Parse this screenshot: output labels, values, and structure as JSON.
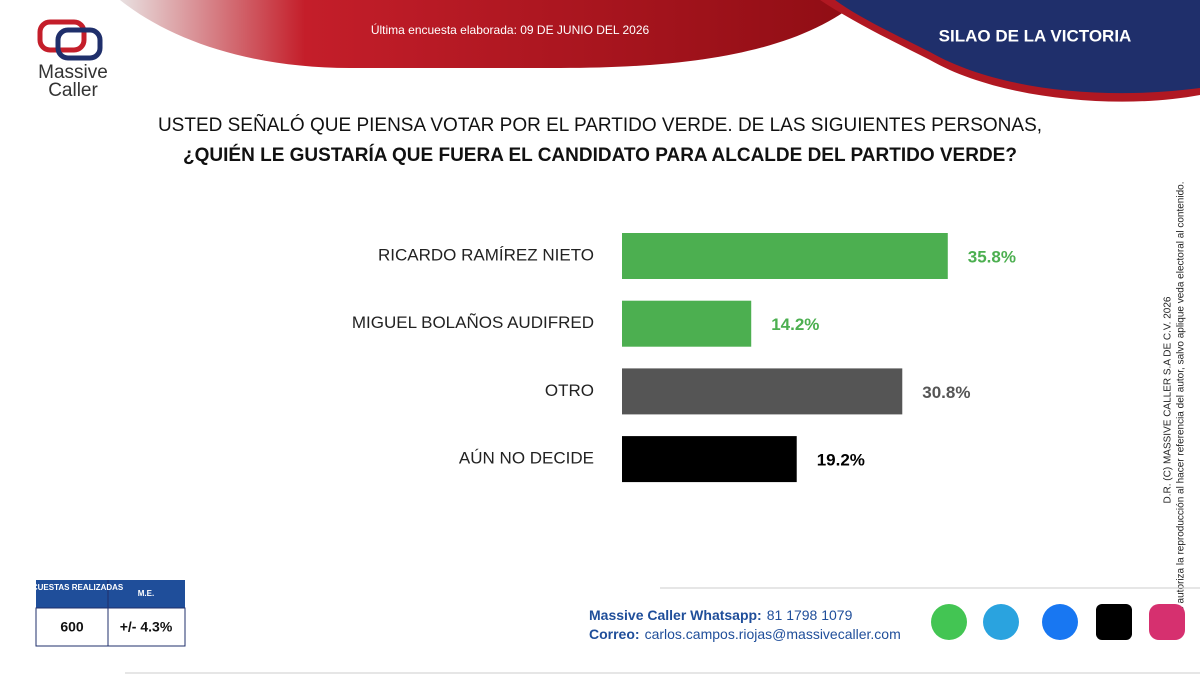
{
  "header": {
    "logo_top": "Massive",
    "logo_bottom": "Caller",
    "survey_date": "Última encuesta elaborada: 09 DE JUNIO DEL 2026",
    "location": "SILAO DE LA VICTORIA"
  },
  "chart_data": {
    "type": "bar",
    "orientation": "horizontal",
    "title": "USTED SEÑALÓ QUE PIENSA VOTAR POR EL PARTIDO VERDE. DE LAS SIGUIENTES PERSONAS,",
    "subtitle": "¿QUIÉN LE GUSTARÍA QUE FUERA EL CANDIDATO PARA ALCALDE DEL PARTIDO VERDE?",
    "categories": [
      "RICARDO RAMÍREZ NIETO",
      "MIGUEL BOLAÑOS AUDIFRED",
      "OTRO",
      "AÚN NO DECIDE"
    ],
    "values": [
      35.8,
      14.2,
      30.8,
      19.2
    ],
    "value_labels": [
      "35.8%",
      "14.2%",
      "30.8%",
      "19.2%"
    ],
    "colors": [
      "#4caf50",
      "#4caf50",
      "#555555",
      "#000000"
    ]
  },
  "side_note": {
    "line1": "D.R. (C) MASSIVE CALLER S.A DE C.V. 2026",
    "line2": "Se autoriza la reproducción al hacer referencia del autor, salvo aplique veda electoral al contenido."
  },
  "table": {
    "headers": [
      "ENCUESTAS REALIZADAS",
      "M.E."
    ],
    "rows": [
      [
        "600",
        "+/- 4.3%"
      ]
    ]
  },
  "footer": {
    "whatsapp_label": "Massive Caller Whatsapp:",
    "whatsapp": "81 1798 1079",
    "email_label": "Correo:",
    "email": "carlos.campos.riojas@massivecaller.com"
  }
}
